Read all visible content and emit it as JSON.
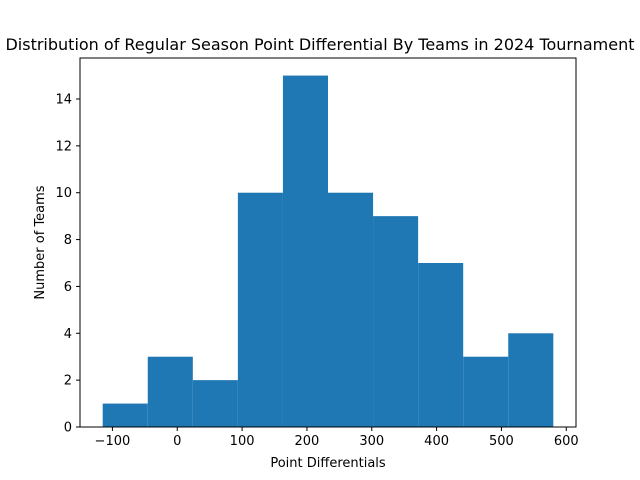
{
  "chart_data": {
    "type": "histogram",
    "title": "Distribution of Regular Season Point Differential By Teams in 2024 Tournament",
    "xlabel": "Point Differentials",
    "ylabel": "Number of Teams",
    "bin_edges": [
      -115,
      -45.5,
      24,
      93.5,
      163,
      232.5,
      302,
      371.5,
      441,
      510.5,
      580
    ],
    "counts": [
      1,
      3,
      2,
      10,
      15,
      10,
      9,
      7,
      3,
      4
    ],
    "xlim": [
      -150,
      615
    ],
    "ylim": [
      0,
      15.75
    ],
    "xticks": [
      -100,
      0,
      100,
      200,
      300,
      400,
      500,
      600
    ],
    "yticks": [
      0,
      2,
      4,
      6,
      8,
      10,
      12,
      14
    ],
    "grid": false,
    "bar_color": "#1f77b4"
  }
}
